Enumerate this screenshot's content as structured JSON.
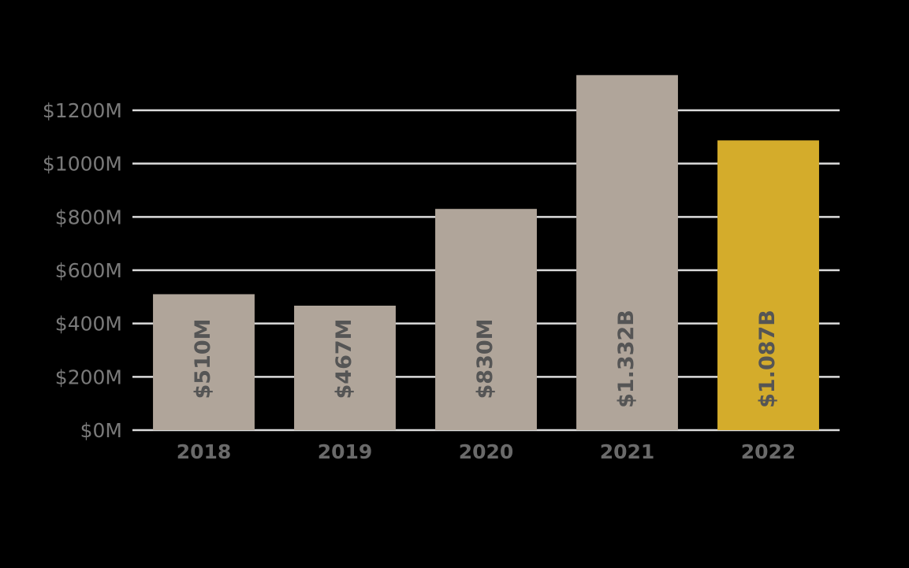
{
  "chart_data": {
    "type": "bar",
    "categories": [
      "2018",
      "2019",
      "2020",
      "2021",
      "2022"
    ],
    "values": [
      510,
      467,
      830,
      1332,
      1087
    ],
    "value_labels": [
      "$510M",
      "$467M",
      "$830M",
      "$1.332B",
      "$1.087B"
    ],
    "colors": [
      "#b0a59a",
      "#b0a59a",
      "#b0a59a",
      "#b0a59a",
      "#d4ac2b"
    ],
    "ylim": [
      0,
      1400
    ],
    "yticks": [
      {
        "value": 0,
        "label": "$0M"
      },
      {
        "value": 200,
        "label": "$200M"
      },
      {
        "value": 400,
        "label": "$400M"
      },
      {
        "value": 600,
        "label": "$600M"
      },
      {
        "value": 800,
        "label": "$800M"
      },
      {
        "value": 1000,
        "label": "$1000M"
      },
      {
        "value": 1200,
        "label": "$1200M"
      }
    ],
    "grid": true
  }
}
